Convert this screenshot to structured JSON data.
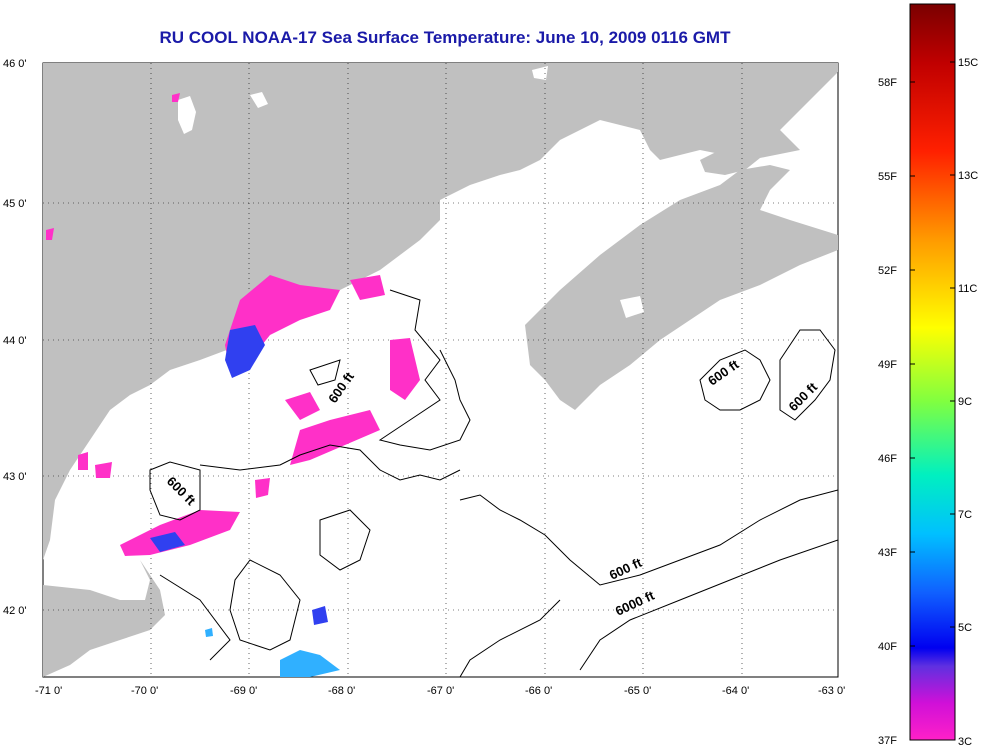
{
  "title": "RU COOL  NOAA-17  Sea Surface Temperature:  June 10, 2009 0116 GMT",
  "map": {
    "lat_labels": [
      "46 0'",
      "45 0'",
      "44 0'",
      "43 0'",
      "42 0'"
    ],
    "lon_labels": [
      "-71 0'",
      "-70 0'",
      "-69 0'",
      "-68 0'",
      "-67 0'",
      "-66 0'",
      "-65 0'",
      "-64 0'",
      "-63 0'"
    ],
    "contour_labels": [
      "600 ft",
      "600 ft",
      "600 ft",
      "600 ft",
      "600 ft",
      "6000 ft"
    ],
    "land_color": "#c0c0c0",
    "water_color": "#ffffff"
  },
  "colorbar": {
    "fahrenheit_labels": [
      "58F",
      "55F",
      "52F",
      "49F",
      "46F",
      "43F",
      "40F",
      "37F"
    ],
    "celsius_labels": [
      "15C",
      "13C",
      "11C",
      "9C",
      "7C",
      "5C",
      "3C"
    ],
    "min_label": "37F",
    "min_label_c": "3C"
  }
}
